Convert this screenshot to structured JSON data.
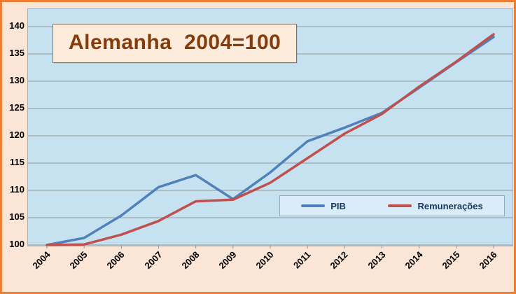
{
  "chart_data": {
    "type": "line",
    "title": "Alemanha  2004=100",
    "xlabel": "",
    "ylabel": "",
    "categories": [
      "2004",
      "2005",
      "2006",
      "2007",
      "2008",
      "2009",
      "2010",
      "2011",
      "2012",
      "2013",
      "2014",
      "2015",
      "2016"
    ],
    "series": [
      {
        "name": "PIB",
        "color": "#4F81BD",
        "values": [
          100,
          101.3,
          105.4,
          110.6,
          112.8,
          108.4,
          113.3,
          119.0,
          121.5,
          124.2,
          128.8,
          133.5,
          138.1
        ]
      },
      {
        "name": "Remunerações",
        "color": "#C0504D",
        "values": [
          100,
          100.1,
          101.9,
          104.4,
          108.0,
          108.3,
          111.4,
          115.9,
          120.4,
          124.0,
          129.0,
          133.6,
          138.6
        ]
      }
    ],
    "ylim": [
      100,
      140
    ],
    "ytick_step": 5,
    "grid": true,
    "legend_position": "inside-bottom-right"
  },
  "colors": {
    "frame_bg": "#FBE5D6",
    "frame_border": "#ED7D31",
    "plot_bg": "#C6E2F0",
    "plot_border": "#9DB4C4",
    "grid": "#969696",
    "axis_text": "#000000",
    "title_color": "#843C0C",
    "title_box_bg": "#FDEBDC",
    "title_box_border": "#8A7156",
    "legend_bg": "#D9ECF7",
    "legend_border": "#8FAABF",
    "legend_text": "#17375E"
  }
}
